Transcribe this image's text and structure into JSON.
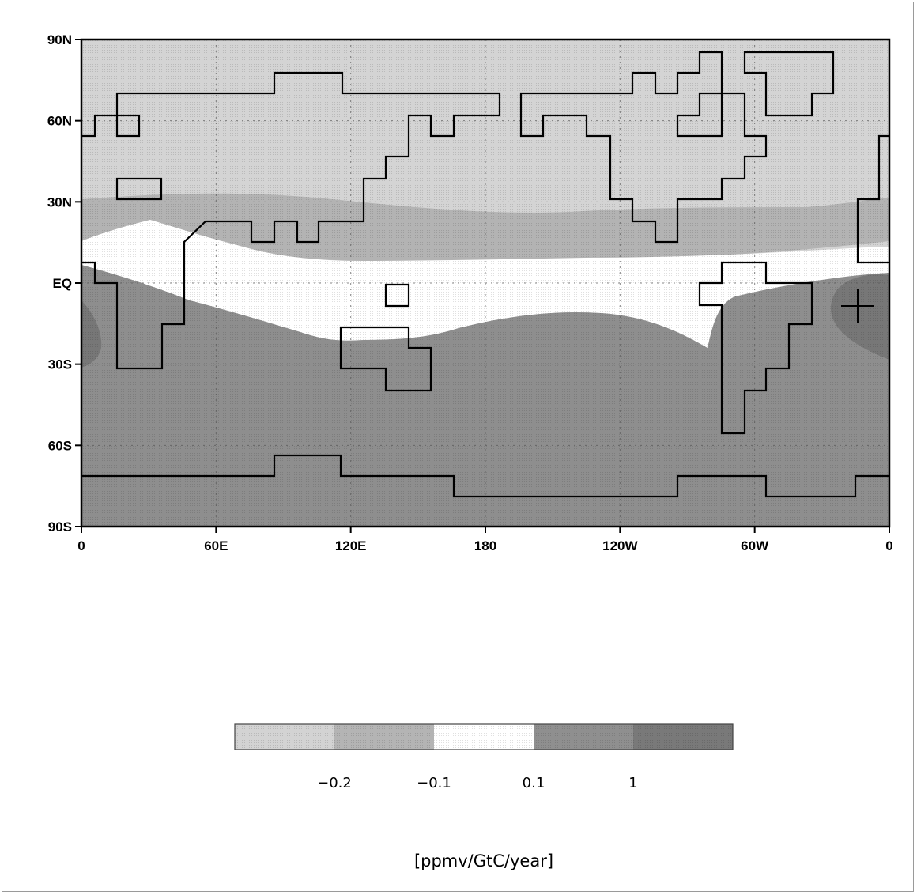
{
  "chart_data": {
    "type": "heatmap",
    "x_ticks": [
      "0",
      "60E",
      "120E",
      "180",
      "120W",
      "60W",
      "0"
    ],
    "y_ticks": [
      "90N",
      "60N",
      "30N",
      "EQ",
      "30S",
      "60S",
      "90S"
    ],
    "xlim": [
      0,
      360
    ],
    "ylim": [
      -90,
      90
    ],
    "grid": true,
    "legend": {
      "placement": "bottom",
      "boundaries": [
        "−0.2",
        "−0.1",
        "0.1",
        "1"
      ],
      "bins": [
        {
          "range": "< −0.2",
          "color": "#d3d3d3"
        },
        {
          "range": "−0.2 to −0.1",
          "color": "#b4b4b4"
        },
        {
          "range": "−0.1 to 0.1",
          "color": "#ffffff"
        },
        {
          "range": "0.1 to 1",
          "color": "#8f8f8f"
        },
        {
          "range": "> 1",
          "color": "#797979"
        }
      ],
      "units": "[ppmv/GtC/year]"
    },
    "bands_note": "light gray north of ~30N, mid gray ~15-30N, white near equator, dark gray south; darker patches near 10W/10S and 0-10E/20S",
    "marker": {
      "symbol": "+",
      "lon": 346,
      "lat": -8
    }
  }
}
